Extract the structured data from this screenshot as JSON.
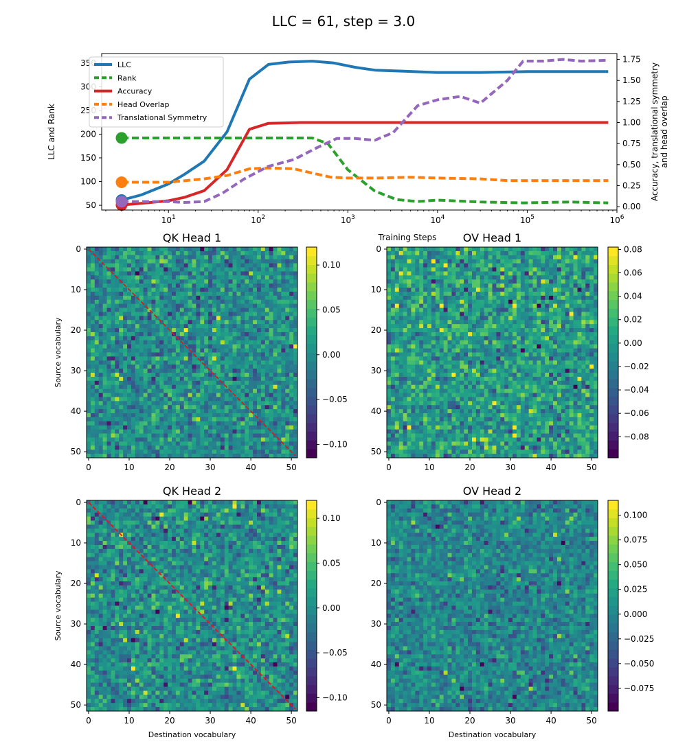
{
  "figure": {
    "suptitle": "LLC = 61, step = 3.0"
  },
  "chart_data": [
    {
      "type": "line",
      "xscale": "log",
      "xlim": [
        1.8,
        1000000
      ],
      "xlabel": "Training Steps",
      "ylabel_left": "LLC and Rank",
      "ylabel_right_line1": "Accuracy, translational symmetry",
      "ylabel_right_line2": "and head overlap",
      "ylim_left": [
        40,
        370
      ],
      "ylim_right": [
        -0.04,
        1.82
      ],
      "yticks_left": [
        50,
        100,
        150,
        200,
        250,
        300,
        350
      ],
      "yticks_right": [
        0.0,
        0.25,
        0.5,
        0.75,
        1.0,
        1.25,
        1.5,
        1.75
      ],
      "x_exponents": [
        1,
        2,
        3,
        4,
        5,
        6
      ],
      "legend_position": "upper-left",
      "series": [
        {
          "name": "LLC",
          "axis": "left",
          "color": "#1f77b4",
          "style": "solid",
          "marker_value": 61,
          "x": [
            3,
            5,
            10,
            15,
            25,
            45,
            80,
            130,
            220,
            400,
            700,
            1200,
            2000,
            4000,
            10000,
            30000,
            100000,
            300000,
            800000
          ],
          "y": [
            61,
            72,
            95,
            115,
            143,
            205,
            316,
            347,
            352,
            354,
            350,
            341,
            335,
            333,
            330,
            330,
            332,
            332,
            332
          ]
        },
        {
          "name": "Rank",
          "axis": "left",
          "color": "#2ca02c",
          "style": "dashed",
          "marker_value": 192,
          "x": [
            3,
            10,
            100,
            400,
            600,
            1000,
            2000,
            3500,
            6000,
            10000,
            30000,
            90000,
            300000,
            800000
          ],
          "y": [
            192,
            192,
            192,
            192,
            180,
            125,
            80,
            62,
            58,
            61,
            57,
            55,
            57,
            55
          ]
        },
        {
          "name": "Accuracy",
          "axis": "right",
          "color": "#d62728",
          "style": "solid",
          "marker_value": 0.02,
          "x": [
            3,
            5,
            10,
            15,
            25,
            45,
            80,
            130,
            300,
            1000,
            10000,
            100000,
            800000
          ],
          "y": [
            0.02,
            0.04,
            0.07,
            0.11,
            0.19,
            0.44,
            0.92,
            0.99,
            1.0,
            1.0,
            1.0,
            1.0,
            1.0
          ]
        },
        {
          "name": "Head Overlap",
          "axis": "right",
          "color": "#ff7f0e",
          "style": "dashed",
          "marker_value": 0.29,
          "x": [
            3,
            10,
            25,
            45,
            80,
            130,
            250,
            400,
            650,
            1000,
            2000,
            5000,
            10000,
            30000,
            60000,
            100000,
            800000
          ],
          "y": [
            0.29,
            0.29,
            0.33,
            0.37,
            0.45,
            0.46,
            0.45,
            0.4,
            0.35,
            0.34,
            0.34,
            0.35,
            0.34,
            0.33,
            0.31,
            0.31,
            0.31
          ]
        },
        {
          "name": "Translational Symmetry",
          "axis": "right",
          "color": "#9467bd",
          "style": "dashed",
          "marker_value": 0.06,
          "x": [
            3,
            10,
            15,
            25,
            40,
            70,
            130,
            250,
            450,
            750,
            1200,
            2000,
            3200,
            6000,
            10000,
            18000,
            30000,
            60000,
            90000,
            150000,
            250000,
            400000,
            800000
          ],
          "y": [
            0.06,
            0.06,
            0.05,
            0.06,
            0.16,
            0.33,
            0.48,
            0.56,
            0.7,
            0.81,
            0.81,
            0.79,
            0.88,
            1.2,
            1.27,
            1.31,
            1.23,
            1.5,
            1.73,
            1.73,
            1.75,
            1.73,
            1.74
          ]
        }
      ]
    },
    {
      "type": "heatmap",
      "title": "QK Head 1",
      "ylabel": "Source vocabulary",
      "xlabel": "",
      "size": 52,
      "seed": 11,
      "amp": 0.07,
      "vmin": -0.115,
      "vmax": 0.12,
      "diagonal": true,
      "ticks": [
        0,
        10,
        20,
        30,
        40,
        50
      ],
      "colorbar_ticks": [
        0.1,
        0.05,
        0.0,
        -0.05,
        -0.1
      ],
      "colorbar_labels": [
        "0.10",
        "0.05",
        "0.00",
        "−0.05",
        "−0.10"
      ]
    },
    {
      "type": "heatmap",
      "title": "OV Head 1",
      "ylabel": "",
      "xlabel": "",
      "size": 52,
      "seed": 23,
      "amp": 0.055,
      "vmin": -0.098,
      "vmax": 0.082,
      "diagonal": false,
      "ticks": [
        0,
        10,
        20,
        30,
        40,
        50
      ],
      "colorbar_ticks": [
        0.08,
        0.06,
        0.04,
        0.02,
        0.0,
        -0.02,
        -0.04,
        -0.06,
        -0.08
      ],
      "colorbar_labels": [
        "0.08",
        "0.06",
        "0.04",
        "0.02",
        "0.00",
        "−0.02",
        "−0.04",
        "−0.06",
        "−0.08"
      ]
    },
    {
      "type": "heatmap",
      "title": "QK Head 2",
      "ylabel": "Source vocabulary",
      "xlabel": "Destination vocabulary",
      "size": 52,
      "seed": 37,
      "amp": 0.07,
      "vmin": -0.115,
      "vmax": 0.12,
      "diagonal": true,
      "ticks": [
        0,
        10,
        20,
        30,
        40,
        50
      ],
      "colorbar_ticks": [
        0.1,
        0.05,
        0.0,
        -0.05,
        -0.1
      ],
      "colorbar_labels": [
        "0.10",
        "0.05",
        "0.00",
        "−0.05",
        "−0.10"
      ]
    },
    {
      "type": "heatmap",
      "title": "OV Head 2",
      "ylabel": "",
      "xlabel": "Destination vocabulary",
      "size": 52,
      "seed": 53,
      "amp": 0.05,
      "vmin": -0.098,
      "vmax": 0.115,
      "diagonal": false,
      "ticks": [
        0,
        10,
        20,
        30,
        40,
        50
      ],
      "colorbar_ticks": [
        0.1,
        0.075,
        0.05,
        0.025,
        0.0,
        -0.025,
        -0.05,
        -0.075
      ],
      "colorbar_labels": [
        "0.100",
        "0.075",
        "0.050",
        "0.025",
        "0.000",
        "−0.025",
        "−0.050",
        "−0.075"
      ]
    }
  ]
}
